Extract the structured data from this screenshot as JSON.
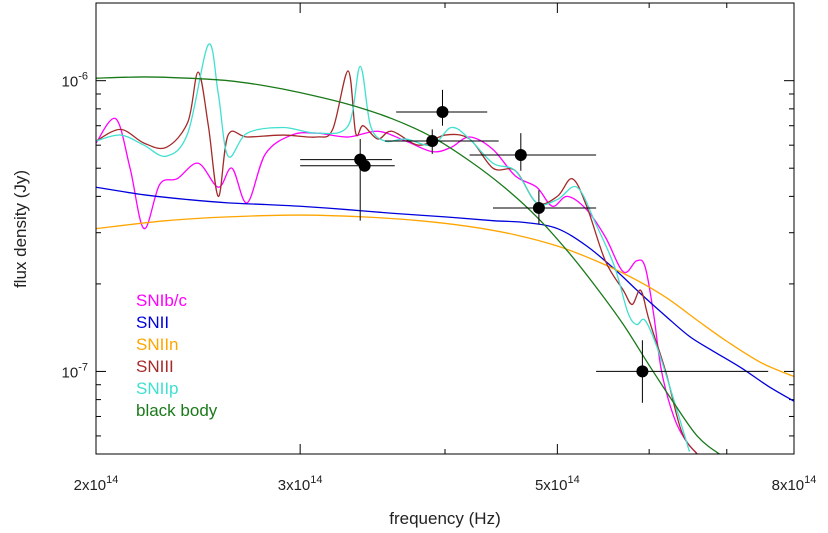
{
  "chart_data": {
    "type": "line",
    "xlabel": "frequency (Hz)",
    "ylabel": "flux density (Jy)",
    "xscale": "log",
    "yscale": "log",
    "xlim": [
      200000000000000.0,
      800000000000000.0
    ],
    "ylim": [
      5.2e-08,
      1.85e-06
    ],
    "grid": false,
    "legend_position": "bottom-left",
    "x_ticks": [
      {
        "value": 200000000000000.0,
        "label": "2x10",
        "exp": "14"
      },
      {
        "value": 300000000000000.0,
        "label": "3x10",
        "exp": "14"
      },
      {
        "value": 500000000000000.0,
        "label": "5x10",
        "exp": "14"
      },
      {
        "value": 800000000000000.0,
        "label": "8x10",
        "exp": "14"
      }
    ],
    "y_ticks": [
      {
        "value": 1e-06,
        "label": "10",
        "exp": "-6"
      },
      {
        "value": 1e-07,
        "label": "10",
        "exp": "-7"
      }
    ],
    "series": [
      {
        "name": "SNIb/c",
        "color": "#ff00ff",
        "x": [
          200000000000000.0,
          208000000000000.0,
          214000000000000.0,
          220000000000000.0,
          227000000000000.0,
          235000000000000.0,
          245000000000000.0,
          255000000000000.0,
          262000000000000.0,
          270000000000000.0,
          280000000000000.0,
          295000000000000.0,
          310000000000000.0,
          330000000000000.0,
          350000000000000.0,
          370000000000000.0,
          390000000000000.0,
          405000000000000.0,
          420000000000000.0,
          440000000000000.0,
          460000000000000.0,
          480000000000000.0,
          495000000000000.0,
          510000000000000.0,
          530000000000000.0,
          550000000000000.0,
          570000000000000.0,
          585000000000000.0,
          595000000000000.0,
          605000000000000.0,
          615000000000000.0,
          630000000000000.0,
          645000000000000.0,
          660000000000000.0
        ],
        "y": [
          6.1e-07,
          7.4e-07,
          5e-07,
          3.1e-07,
          4.4e-07,
          4.6e-07,
          5.2e-07,
          4.3e-07,
          5e-07,
          3.8e-07,
          5.6e-07,
          6.5e-07,
          6.6e-07,
          6.4e-07,
          6.7e-07,
          6.2e-07,
          5.7e-07,
          5.9e-07,
          6.4e-07,
          5.8e-07,
          4.7e-07,
          4.3e-07,
          3.7e-07,
          4e-07,
          3.6e-07,
          2.9e-07,
          2.2e-07,
          2.4e-07,
          2.3e-07,
          1.6e-07,
          1e-07,
          7e-08,
          5.8e-08,
          5.2e-08
        ]
      },
      {
        "name": "SNII",
        "color": "#0000dd",
        "x": [
          200000000000000.0,
          220000000000000.0,
          240000000000000.0,
          260000000000000.0,
          280000000000000.0,
          300000000000000.0,
          330000000000000.0,
          360000000000000.0,
          400000000000000.0,
          440000000000000.0,
          470000000000000.0,
          500000000000000.0,
          530000000000000.0,
          560000000000000.0,
          590000000000000.0,
          620000000000000.0,
          650000000000000.0,
          680000000000000.0,
          720000000000000.0,
          760000000000000.0,
          800000000000000.0
        ],
        "y": [
          4.3e-07,
          4.05e-07,
          3.9e-07,
          3.8e-07,
          3.75e-07,
          3.7e-07,
          3.6e-07,
          3.5e-07,
          3.4e-07,
          3.3e-07,
          3.25e-07,
          3.1e-07,
          2.7e-07,
          2.25e-07,
          1.85e-07,
          1.55e-07,
          1.32e-07,
          1.18e-07,
          1.03e-07,
          8.9e-08,
          7.9e-08
        ]
      },
      {
        "name": "SNIIn",
        "color": "#ffa500",
        "x": [
          200000000000000.0,
          230000000000000.0,
          260000000000000.0,
          300000000000000.0,
          340000000000000.0,
          380000000000000.0,
          420000000000000.0,
          460000000000000.0,
          500000000000000.0,
          540000000000000.0,
          580000000000000.0,
          620000000000000.0,
          660000000000000.0,
          700000000000000.0,
          750000000000000.0,
          800000000000000.0
        ],
        "y": [
          3.1e-07,
          3.3e-07,
          3.4e-07,
          3.45e-07,
          3.4e-07,
          3.3e-07,
          3.15e-07,
          2.95e-07,
          2.7e-07,
          2.4e-07,
          2.1e-07,
          1.8e-07,
          1.5e-07,
          1.27e-07,
          1.07e-07,
          9.6e-08
        ]
      },
      {
        "name": "SNIII",
        "color": "#a52a2a",
        "x": [
          200000000000000.0,
          210000000000000.0,
          220000000000000.0,
          230000000000000.0,
          240000000000000.0,
          245000000000000.0,
          250000000000000.0,
          255000000000000.0,
          260000000000000.0,
          270000000000000.0,
          290000000000000.0,
          310000000000000.0,
          320000000000000.0,
          330000000000000.0,
          335000000000000.0,
          340000000000000.0,
          350000000000000.0,
          360000000000000.0,
          380000000000000.0,
          400000000000000.0,
          420000000000000.0,
          440000000000000.0,
          460000000000000.0,
          480000000000000.0,
          500000000000000.0,
          515000000000000.0,
          530000000000000.0,
          550000000000000.0,
          570000000000000.0,
          580000000000000.0,
          590000000000000.0,
          600000000000000.0,
          620000000000000.0,
          640000000000000.0,
          660000000000000.0
        ],
        "y": [
          6.2e-07,
          6.8e-07,
          6.1e-07,
          5.9e-07,
          7.2e-07,
          1.07e-06,
          7e-07,
          4e-07,
          6.5e-07,
          6.4e-07,
          6.5e-07,
          6.4e-07,
          6.8e-07,
          1.08e-06,
          6.6e-07,
          7e-07,
          6.3e-07,
          6.7e-07,
          6e-07,
          6.5e-07,
          6.3e-07,
          5e-07,
          4.9e-07,
          3.8e-07,
          4e-07,
          4.6e-07,
          3.7e-07,
          2.4e-07,
          1.9e-07,
          1.7e-07,
          1.9e-07,
          1.5e-07,
          1e-07,
          6.2e-08,
          5.2e-08
        ]
      },
      {
        "name": "SNIIp",
        "color": "#40e0d0",
        "x": [
          200000000000000.0,
          210000000000000.0,
          220000000000000.0,
          230000000000000.0,
          240000000000000.0,
          250000000000000.0,
          255000000000000.0,
          260000000000000.0,
          270000000000000.0,
          290000000000000.0,
          310000000000000.0,
          330000000000000.0,
          338000000000000.0,
          345000000000000.0,
          355000000000000.0,
          370000000000000.0,
          390000000000000.0,
          405000000000000.0,
          420000000000000.0,
          440000000000000.0,
          460000000000000.0,
          480000000000000.0,
          500000000000000.0,
          520000000000000.0,
          540000000000000.0,
          560000000000000.0,
          575000000000000.0,
          585000000000000.0,
          595000000000000.0,
          610000000000000.0,
          630000000000000.0,
          650000000000000.0
        ],
        "y": [
          6.2e-07,
          6.5e-07,
          6e-07,
          5.5e-07,
          6.6e-07,
          1.33e-06,
          9e-07,
          5.5e-07,
          6.6e-07,
          6.9e-07,
          6.6e-07,
          7e-07,
          1.12e-06,
          7e-07,
          6.2e-07,
          6.3e-07,
          6e-07,
          6.9e-07,
          6.3e-07,
          5.2e-07,
          4.9e-07,
          3.8e-07,
          3.9e-07,
          4.3e-07,
          3.2e-07,
          2.3e-07,
          1.6e-07,
          1.45e-07,
          1.5e-07,
          1.2e-07,
          8e-08,
          5.3e-08
        ]
      },
      {
        "name": "black body",
        "color": "#1a7a1a",
        "x": [
          200000000000000.0,
          220000000000000.0,
          240000000000000.0,
          260000000000000.0,
          280000000000000.0,
          300000000000000.0,
          330000000000000.0,
          360000000000000.0,
          390000000000000.0,
          420000000000000.0,
          450000000000000.0,
          480000000000000.0,
          510000000000000.0,
          540000000000000.0,
          570000000000000.0,
          600000000000000.0,
          630000000000000.0,
          660000000000000.0,
          690000000000000.0,
          720000000000000.0
        ],
        "y": [
          1.02e-06,
          1.03e-06,
          1.02e-06,
          1e-06,
          9.6e-07,
          9.1e-07,
          8.3e-07,
          7.4e-07,
          6.4e-07,
          5.3e-07,
          4.3e-07,
          3.4e-07,
          2.6e-07,
          1.95e-07,
          1.45e-07,
          1.05e-07,
          7.8e-08,
          6e-08,
          5.2e-08,
          4.8e-08
        ]
      }
    ],
    "points": [
      {
        "x": 338000000000000.0,
        "y": 5.35e-07,
        "xerr": [
          300000000000000.0,
          360000000000000.0
        ],
        "yerr": [
          3.3e-07,
          6.3e-07
        ]
      },
      {
        "x": 341000000000000.0,
        "y": 5.1e-07,
        "xerr": [
          300000000000000.0,
          362000000000000.0
        ],
        "yerr": null
      },
      {
        "x": 390000000000000.0,
        "y": 6.2e-07,
        "xerr": [
          355000000000000.0,
          445000000000000.0
        ],
        "yerr": [
          5.6e-07,
          6.8e-07
        ]
      },
      {
        "x": 398000000000000.0,
        "y": 7.8e-07,
        "xerr": [
          363000000000000.0,
          435000000000000.0
        ],
        "yerr": [
          7e-07,
          9.3e-07
        ]
      },
      {
        "x": 465000000000000.0,
        "y": 5.55e-07,
        "xerr": [
          420000000000000.0,
          540000000000000.0
        ],
        "yerr": [
          4.9e-07,
          6.6e-07
        ]
      },
      {
        "x": 482000000000000.0,
        "y": 3.65e-07,
        "xerr": [
          440000000000000.0,
          540000000000000.0
        ],
        "yerr": [
          3.2e-07,
          4.2e-07
        ]
      },
      {
        "x": 592000000000000.0,
        "y": 1e-07,
        "xerr": [
          540000000000000.0,
          760000000000000.0
        ],
        "yerr": [
          7.8e-08,
          1.28e-07
        ]
      }
    ]
  }
}
